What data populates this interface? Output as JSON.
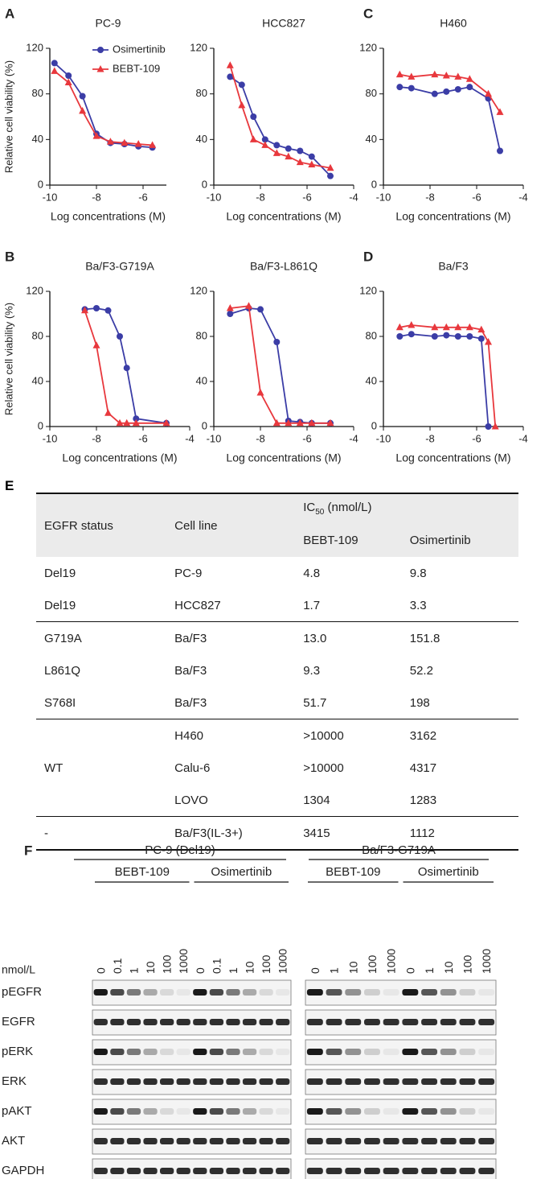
{
  "chart_data": [
    {
      "type": "line",
      "panel": "A",
      "title": "PC-9",
      "ylabel": "Relative cell viability (%)",
      "xlabel": "Log concentrations (M)",
      "x": [
        -9.8,
        -9.2,
        -8.6,
        -8,
        -7.4,
        -6.8,
        -6.2,
        -5.6
      ],
      "xlim": [
        -10,
        -5
      ],
      "xticks": [
        -10,
        -8,
        -6
      ],
      "ylim": [
        0,
        120
      ],
      "yticks": [
        0,
        40,
        80,
        120
      ],
      "legend": "upper right",
      "series": [
        {
          "name": "Osimertinib",
          "color": "#3b3da6",
          "marker": "circle",
          "values": [
            107,
            96,
            78,
            45,
            37,
            36,
            34,
            33
          ]
        },
        {
          "name": "BEBT-109",
          "color": "#e8383d",
          "marker": "triangle",
          "values": [
            100,
            90,
            65,
            43,
            38,
            37,
            36,
            35
          ]
        }
      ]
    },
    {
      "type": "line",
      "title": "HCC827",
      "xlabel": "Log concentrations (M)",
      "x": [
        -9.3,
        -8.8,
        -8.3,
        -7.8,
        -7.3,
        -6.8,
        -6.3,
        -5.8,
        -5
      ],
      "xlim": [
        -10,
        -4
      ],
      "xticks": [
        -10,
        -8,
        -6,
        -4
      ],
      "ylim": [
        0,
        120
      ],
      "yticks": [
        0,
        40,
        80,
        120
      ],
      "series": [
        {
          "color": "#3b3da6",
          "marker": "circle",
          "values": [
            95,
            88,
            60,
            40,
            35,
            32,
            30,
            25,
            8
          ]
        },
        {
          "color": "#e8383d",
          "marker": "triangle",
          "values": [
            105,
            70,
            40,
            35,
            28,
            25,
            20,
            18,
            15
          ]
        }
      ]
    },
    {
      "type": "line",
      "panel": "C",
      "title": "H460",
      "xlabel": "Log concentrations (M)",
      "x": [
        -9.3,
        -8.8,
        -7.8,
        -7.3,
        -6.8,
        -6.3,
        -5.5,
        -5
      ],
      "xlim": [
        -10,
        -4
      ],
      "xticks": [
        -10,
        -8,
        -6,
        -4
      ],
      "ylim": [
        0,
        120
      ],
      "yticks": [
        0,
        40,
        80,
        120
      ],
      "series": [
        {
          "color": "#3b3da6",
          "marker": "circle",
          "values": [
            86,
            85,
            80,
            82,
            84,
            86,
            76,
            30
          ]
        },
        {
          "color": "#e8383d",
          "marker": "triangle",
          "values": [
            97,
            95,
            97,
            96,
            95,
            93,
            80,
            64
          ]
        }
      ]
    },
    {
      "type": "line",
      "panel": "B",
      "title": "Ba/F3-G719A",
      "ylabel": "Relative cell viability (%)",
      "xlabel": "Log concentrations (M)",
      "x": [
        -8.5,
        -8,
        -7.5,
        -7,
        -6.7,
        -6.3,
        -5
      ],
      "xlim": [
        -10,
        -4
      ],
      "xticks": [
        -10,
        -8,
        -6,
        -4
      ],
      "ylim": [
        0,
        120
      ],
      "yticks": [
        0,
        40,
        80,
        120
      ],
      "series": [
        {
          "color": "#3b3da6",
          "marker": "circle",
          "values": [
            104,
            105,
            103,
            80,
            52,
            7,
            3
          ]
        },
        {
          "color": "#e8383d",
          "marker": "triangle",
          "values": [
            103,
            72,
            12,
            3,
            3,
            3,
            3
          ]
        }
      ]
    },
    {
      "type": "line",
      "title": "Ba/F3-L861Q",
      "xlabel": "Log concentrations (M)",
      "x": [
        -9.3,
        -8.5,
        -8,
        -7.3,
        -6.8,
        -6.3,
        -5.8,
        -5
      ],
      "xlim": [
        -10,
        -4
      ],
      "xticks": [
        -10,
        -8,
        -6,
        -4
      ],
      "ylim": [
        0,
        120
      ],
      "yticks": [
        0,
        40,
        80,
        120
      ],
      "series": [
        {
          "color": "#3b3da6",
          "marker": "circle",
          "values": [
            100,
            105,
            104,
            75,
            5,
            4,
            3,
            3
          ]
        },
        {
          "color": "#e8383d",
          "marker": "triangle",
          "values": [
            105,
            107,
            30,
            3,
            3,
            3,
            3,
            3
          ]
        }
      ]
    },
    {
      "type": "line",
      "panel": "D",
      "title": "Ba/F3",
      "xlabel": "Log concentrations (M)",
      "x": [
        -9.3,
        -8.8,
        -7.8,
        -7.3,
        -6.8,
        -6.3,
        -5.8,
        -5.5,
        -5.2
      ],
      "xlim": [
        -10,
        -4
      ],
      "xticks": [
        -10,
        -8,
        -6,
        -4
      ],
      "ylim": [
        0,
        120
      ],
      "yticks": [
        0,
        40,
        80,
        120
      ],
      "series": [
        {
          "color": "#3b3da6",
          "marker": "circle",
          "values": [
            80,
            82,
            80,
            81,
            80,
            80,
            78,
            0,
            null
          ]
        },
        {
          "color": "#e8383d",
          "marker": "triangle",
          "values": [
            88,
            90,
            88,
            88,
            88,
            88,
            86,
            75,
            0
          ]
        }
      ]
    }
  ],
  "table": {
    "panel": "E",
    "header": {
      "status": "EGFR status",
      "cell": "Cell line",
      "ic": [
        "IC",
        "50",
        "(nmol/L)"
      ],
      "drugs": [
        "BEBT-109",
        "Osimertinib"
      ]
    },
    "groups": [
      {
        "rows": [
          [
            "Del19",
            "PC-9",
            "4.8",
            "9.8"
          ],
          [
            "Del19",
            "HCC827",
            "1.7",
            "3.3"
          ]
        ]
      },
      {
        "rows": [
          [
            "G719A",
            "Ba/F3",
            "13.0",
            "151.8"
          ],
          [
            "L861Q",
            "Ba/F3",
            "9.3",
            "52.2"
          ],
          [
            "S768I",
            "Ba/F3",
            "51.7",
            "198"
          ]
        ]
      },
      {
        "status": "WT",
        "rows": [
          [
            "H460",
            ">10000",
            "3162"
          ],
          [
            "Calu-6",
            ">10000",
            "4317"
          ],
          [
            "LOVO",
            "1304",
            "1283"
          ]
        ]
      },
      {
        "rows": [
          [
            "-",
            "Ba/F3(IL-3+)",
            "3415",
            "1112"
          ]
        ]
      }
    ]
  },
  "blot": {
    "panel": "F",
    "unit": "nmol/L",
    "rows": [
      "pEGFR",
      "EGFR",
      "pERK",
      "ERK",
      "pAKT",
      "AKT",
      "GAPDH"
    ],
    "blocks": [
      {
        "title": "PC-9 (Del19)",
        "groups": [
          {
            "name": "BEBT-109",
            "doses": [
              "0",
              "0.1",
              "1",
              "10",
              "100",
              "1000"
            ]
          },
          {
            "name": "Osimertinib",
            "doses": [
              "0",
              "0.1",
              "1",
              "10",
              "100",
              "1000"
            ]
          }
        ]
      },
      {
        "title": "Ba/F3-G719A",
        "groups": [
          {
            "name": "BEBT-109",
            "doses": [
              "0",
              "1",
              "10",
              "100",
              "1000"
            ]
          },
          {
            "name": "Osimertinib",
            "doses": [
              "0",
              "1",
              "10",
              "100",
              "1000"
            ]
          }
        ]
      }
    ]
  }
}
